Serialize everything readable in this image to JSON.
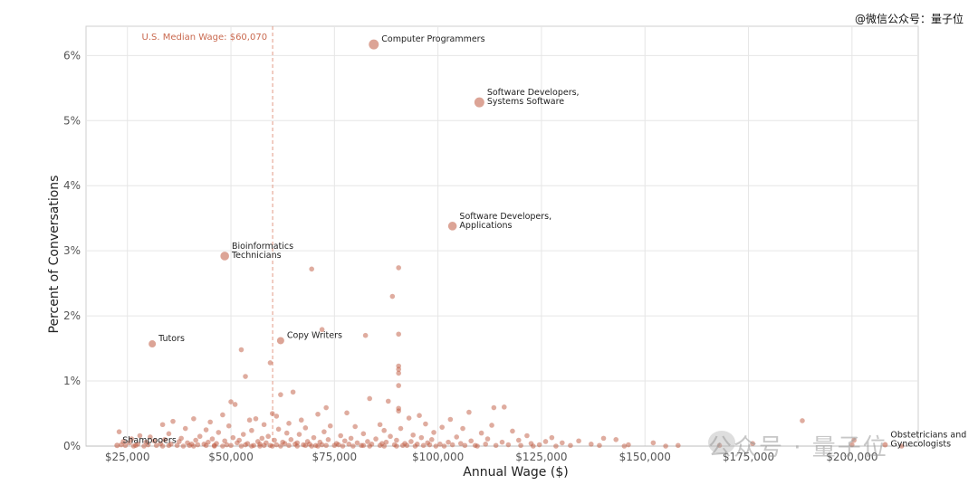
{
  "watermark": {
    "top_right": "@微信公众号：量子位",
    "bottom_right": "公众号 · 量子位"
  },
  "colors": {
    "point": "#c0593f",
    "median_line": "#e29a86",
    "median_label": "#c9694f",
    "grid": "#e6e6e6",
    "frame": "#cfcfcf",
    "tick_text": "#555555",
    "axis_title": "#222222",
    "annotation": "#222222"
  },
  "chart_data": {
    "type": "scatter",
    "xlabel": "Annual Wage ($)",
    "ylabel": "Percent of Conversations",
    "xlim": [
      15000,
      216000
    ],
    "ylim": [
      0,
      6.45
    ],
    "grid": true,
    "x_ticks": [
      25000,
      50000,
      75000,
      100000,
      125000,
      150000,
      175000,
      200000
    ],
    "x_tick_labels": [
      "$25,000",
      "$50,000",
      "$75,000",
      "$100,000",
      "$125,000",
      "$150,000",
      "$175,000",
      "$200,000"
    ],
    "y_ticks": [
      0,
      1,
      2,
      3,
      4,
      5,
      6
    ],
    "y_tick_labels": [
      "0%",
      "1%",
      "2%",
      "3%",
      "4%",
      "5%",
      "6%"
    ],
    "reference_line": {
      "x": 60070,
      "label": "U.S. Median Wage: $60,070"
    },
    "labeled_points": [
      {
        "x": 84500,
        "y": 6.17,
        "label": [
          "Computer Programmers"
        ]
      },
      {
        "x": 110000,
        "y": 5.28,
        "label": [
          "Software Developers,",
          "Systems Software"
        ]
      },
      {
        "x": 103500,
        "y": 3.38,
        "label": [
          "Software Developers,",
          "Applications"
        ]
      },
      {
        "x": 48500,
        "y": 2.92,
        "label": [
          "Bioinformatics",
          "Technicians"
        ]
      },
      {
        "x": 31000,
        "y": 1.57,
        "label": [
          "Tutors"
        ]
      },
      {
        "x": 62000,
        "y": 1.62,
        "label": [
          "Copy Writers"
        ]
      },
      {
        "x": 22500,
        "y": 0.01,
        "label": [
          "Shampooers"
        ]
      },
      {
        "x": 208000,
        "y": 0.02,
        "label": [
          "Obstetricians and",
          "Gynecologists"
        ]
      }
    ],
    "points": [
      [
        69500,
        2.72
      ],
      [
        90500,
        2.74
      ],
      [
        89000,
        2.3
      ],
      [
        72000,
        1.79
      ],
      [
        82500,
        1.7
      ],
      [
        90500,
        1.72
      ],
      [
        52500,
        1.48
      ],
      [
        59500,
        1.28
      ],
      [
        53500,
        1.07
      ],
      [
        90500,
        1.23
      ],
      [
        90500,
        1.18
      ],
      [
        90500,
        1.12
      ],
      [
        90500,
        0.93
      ],
      [
        65000,
        0.83
      ],
      [
        62000,
        0.79
      ],
      [
        83500,
        0.73
      ],
      [
        88000,
        0.69
      ],
      [
        50000,
        0.68
      ],
      [
        51000,
        0.64
      ],
      [
        116000,
        0.6
      ],
      [
        73000,
        0.59
      ],
      [
        113500,
        0.59
      ],
      [
        90500,
        0.58
      ],
      [
        90500,
        0.54
      ],
      [
        107500,
        0.52
      ],
      [
        78000,
        0.51
      ],
      [
        60000,
        0.5
      ],
      [
        48000,
        0.48
      ],
      [
        95500,
        0.47
      ],
      [
        61000,
        0.46
      ],
      [
        71000,
        0.49
      ],
      [
        93000,
        0.43
      ],
      [
        56000,
        0.42
      ],
      [
        41000,
        0.42
      ],
      [
        67000,
        0.4
      ],
      [
        103000,
        0.41
      ],
      [
        188000,
        0.39
      ],
      [
        36000,
        0.38
      ],
      [
        54500,
        0.4
      ],
      [
        45000,
        0.37
      ],
      [
        64000,
        0.35
      ],
      [
        86000,
        0.33
      ],
      [
        97000,
        0.34
      ],
      [
        58000,
        0.33
      ],
      [
        33500,
        0.33
      ],
      [
        113000,
        0.32
      ],
      [
        49500,
        0.31
      ],
      [
        74000,
        0.31
      ],
      [
        80000,
        0.3
      ],
      [
        101000,
        0.29
      ],
      [
        68000,
        0.28
      ],
      [
        91000,
        0.27
      ],
      [
        39000,
        0.27
      ],
      [
        106000,
        0.27
      ],
      [
        61500,
        0.26
      ],
      [
        44000,
        0.25
      ],
      [
        55000,
        0.24
      ],
      [
        87000,
        0.24
      ],
      [
        118000,
        0.23
      ],
      [
        23000,
        0.22
      ],
      [
        72500,
        0.22
      ],
      [
        99000,
        0.21
      ],
      [
        47000,
        0.21
      ],
      [
        63500,
        0.2
      ],
      [
        110500,
        0.2
      ],
      [
        35000,
        0.19
      ],
      [
        82000,
        0.19
      ],
      [
        53000,
        0.18
      ],
      [
        66500,
        0.18
      ],
      [
        94000,
        0.17
      ],
      [
        28000,
        0.16
      ],
      [
        76500,
        0.16
      ],
      [
        121500,
        0.16
      ],
      [
        59000,
        0.15
      ],
      [
        42500,
        0.15
      ],
      [
        88500,
        0.15
      ],
      [
        104500,
        0.14
      ],
      [
        30500,
        0.14
      ],
      [
        70000,
        0.13
      ],
      [
        50500,
        0.13
      ],
      [
        127500,
        0.13
      ],
      [
        96000,
        0.13
      ],
      [
        38000,
        0.12
      ],
      [
        79000,
        0.12
      ],
      [
        57500,
        0.12
      ],
      [
        140000,
        0.12
      ],
      [
        112000,
        0.11
      ],
      [
        26000,
        0.11
      ],
      [
        45500,
        0.11
      ],
      [
        85000,
        0.11
      ],
      [
        64500,
        0.1
      ],
      [
        98500,
        0.1
      ],
      [
        143000,
        0.1
      ],
      [
        34000,
        0.1
      ],
      [
        73500,
        0.1
      ],
      [
        52000,
        0.09
      ],
      [
        119500,
        0.09
      ],
      [
        41500,
        0.09
      ],
      [
        90000,
        0.09
      ],
      [
        60500,
        0.09
      ],
      [
        200500,
        0.09
      ],
      [
        31500,
        0.08
      ],
      [
        77500,
        0.08
      ],
      [
        108000,
        0.08
      ],
      [
        48500,
        0.08
      ],
      [
        134000,
        0.08
      ],
      [
        68500,
        0.07
      ],
      [
        24000,
        0.07
      ],
      [
        93500,
        0.07
      ],
      [
        56500,
        0.07
      ],
      [
        37500,
        0.07
      ],
      [
        83000,
        0.07
      ],
      [
        126000,
        0.07
      ],
      [
        102500,
        0.06
      ],
      [
        62500,
        0.06
      ],
      [
        44500,
        0.06
      ],
      [
        71500,
        0.06
      ],
      [
        29500,
        0.06
      ],
      [
        115500,
        0.06
      ],
      [
        87500,
        0.06
      ],
      [
        51500,
        0.05
      ],
      [
        152000,
        0.05
      ],
      [
        66000,
        0.05
      ],
      [
        39500,
        0.05
      ],
      [
        80500,
        0.05
      ],
      [
        97500,
        0.05
      ],
      [
        25500,
        0.05
      ],
      [
        58500,
        0.05
      ],
      [
        130000,
        0.05
      ],
      [
        75500,
        0.04
      ],
      [
        46500,
        0.04
      ],
      [
        105500,
        0.04
      ],
      [
        33000,
        0.04
      ],
      [
        92000,
        0.04
      ],
      [
        63000,
        0.04
      ],
      [
        122500,
        0.04
      ],
      [
        54000,
        0.04
      ],
      [
        86500,
        0.04
      ],
      [
        176000,
        0.04
      ],
      [
        40500,
        0.03
      ],
      [
        69000,
        0.03
      ],
      [
        100500,
        0.03
      ],
      [
        27500,
        0.03
      ],
      [
        78500,
        0.03
      ],
      [
        57000,
        0.03
      ],
      [
        137000,
        0.03
      ],
      [
        111500,
        0.03
      ],
      [
        43500,
        0.03
      ],
      [
        95000,
        0.03
      ],
      [
        65500,
        0.03
      ],
      [
        35500,
        0.03
      ],
      [
        84000,
        0.03
      ],
      [
        49000,
        0.02
      ],
      [
        124500,
        0.02
      ],
      [
        72000,
        0.02
      ],
      [
        200000,
        0.02
      ],
      [
        30000,
        0.02
      ],
      [
        103500,
        0.02
      ],
      [
        61000,
        0.02
      ],
      [
        89500,
        0.02
      ],
      [
        42000,
        0.02
      ],
      [
        146000,
        0.02
      ],
      [
        76000,
        0.02
      ],
      [
        53500,
        0.02
      ],
      [
        117000,
        0.02
      ],
      [
        23500,
        0.02
      ],
      [
        67500,
        0.02
      ],
      [
        98000,
        0.02
      ],
      [
        37000,
        0.01
      ],
      [
        81500,
        0.01
      ],
      [
        59500,
        0.01
      ],
      [
        132000,
        0.01
      ],
      [
        46000,
        0.01
      ],
      [
        91500,
        0.01
      ],
      [
        70500,
        0.01
      ],
      [
        109000,
        0.01
      ],
      [
        32000,
        0.01
      ],
      [
        55500,
        0.01
      ],
      [
        86000,
        0.01
      ],
      [
        158000,
        0.01
      ],
      [
        64000,
        0.01
      ],
      [
        40000,
        0.01
      ],
      [
        120000,
        0.01
      ],
      [
        75000,
        0.01
      ],
      [
        27000,
        0.01
      ],
      [
        96500,
        0.01
      ],
      [
        50000,
        0.01
      ],
      [
        139000,
        0.01
      ],
      [
        68000,
        0.01
      ],
      [
        35000,
        0.01
      ],
      [
        82000,
        0.01
      ],
      [
        106500,
        0.01
      ],
      [
        58000,
        0.01
      ],
      [
        44000,
        0.01
      ],
      [
        168000,
        0.01
      ],
      [
        92500,
        0.01
      ],
      [
        24500,
        0.01
      ],
      [
        73000,
        0.01
      ],
      [
        114000,
        0.01
      ],
      [
        62000,
        0.0
      ],
      [
        48000,
        0.0
      ],
      [
        87000,
        0.0
      ],
      [
        38500,
        0.0
      ],
      [
        128500,
        0.0
      ],
      [
        66000,
        0.0
      ],
      [
        101500,
        0.0
      ],
      [
        29000,
        0.0
      ],
      [
        79500,
        0.0
      ],
      [
        52500,
        0.0
      ],
      [
        145000,
        0.0
      ],
      [
        94500,
        0.0
      ],
      [
        41000,
        0.0
      ],
      [
        71000,
        0.0
      ],
      [
        57000,
        0.0
      ],
      [
        212000,
        0.0
      ],
      [
        99500,
        0.0
      ],
      [
        33500,
        0.0
      ],
      [
        83500,
        0.0
      ],
      [
        123000,
        0.0
      ],
      [
        60000,
        0.0
      ],
      [
        46000,
        0.0
      ],
      [
        77000,
        0.0
      ],
      [
        155000,
        0.0
      ],
      [
        26500,
        0.0
      ],
      [
        90000,
        0.0
      ],
      [
        55000,
        0.0
      ],
      [
        109500,
        0.0
      ],
      [
        69500,
        0.0
      ]
    ]
  }
}
